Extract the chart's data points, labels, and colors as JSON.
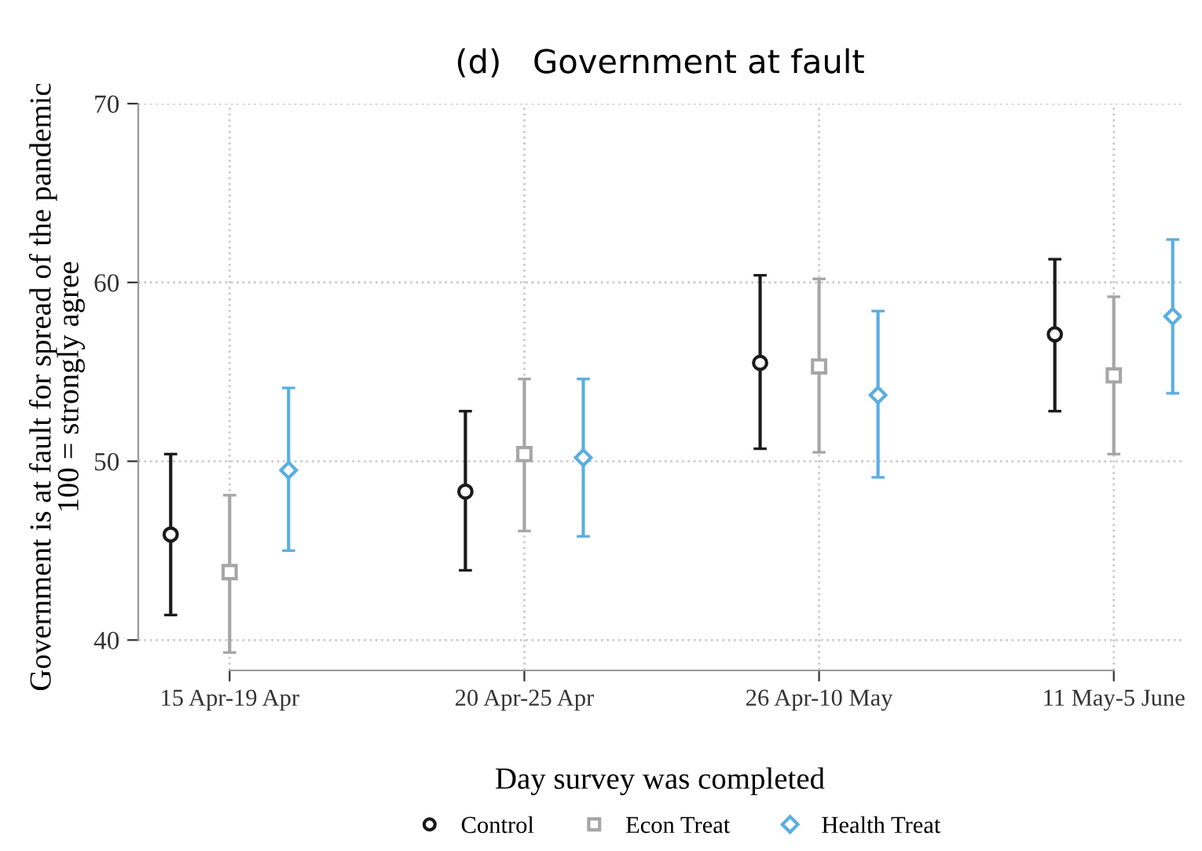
{
  "chart_data": {
    "type": "scatter",
    "title": "(d)   Government at fault",
    "xlabel": "Day survey was completed",
    "ylabel": "Government is at fault for spread of the pandemic\n100 = strongly agree",
    "categories": [
      "15 Apr-19 Apr",
      "20 Apr-25 Apr",
      "26 Apr-10 May",
      "11 May-5 June"
    ],
    "series": [
      {
        "name": "Control",
        "color": "#1a1a1a",
        "marker": "circle",
        "values": [
          45.9,
          48.3,
          55.5,
          57.1
        ],
        "errors": [
          [
            41.4,
            50.4
          ],
          [
            43.9,
            52.8
          ],
          [
            50.7,
            60.4
          ],
          [
            52.8,
            61.3
          ]
        ]
      },
      {
        "name": "Econ Treat",
        "color": "#a6a6a6",
        "marker": "square",
        "values": [
          43.8,
          50.4,
          55.3,
          54.8
        ],
        "errors": [
          [
            39.3,
            48.1
          ],
          [
            46.1,
            54.6
          ],
          [
            50.5,
            60.2
          ],
          [
            50.4,
            59.2
          ]
        ]
      },
      {
        "name": "Health Treat",
        "color": "#5aaee0",
        "marker": "diamond",
        "values": [
          49.5,
          50.2,
          53.7,
          58.1
        ],
        "errors": [
          [
            45.0,
            54.1
          ],
          [
            45.8,
            54.6
          ],
          [
            49.1,
            58.4
          ],
          [
            53.8,
            62.4
          ]
        ]
      }
    ],
    "ylim": [
      38.3,
      70
    ],
    "yticks": [
      40,
      50,
      60,
      70
    ],
    "grid": true,
    "legend": "bottom"
  }
}
